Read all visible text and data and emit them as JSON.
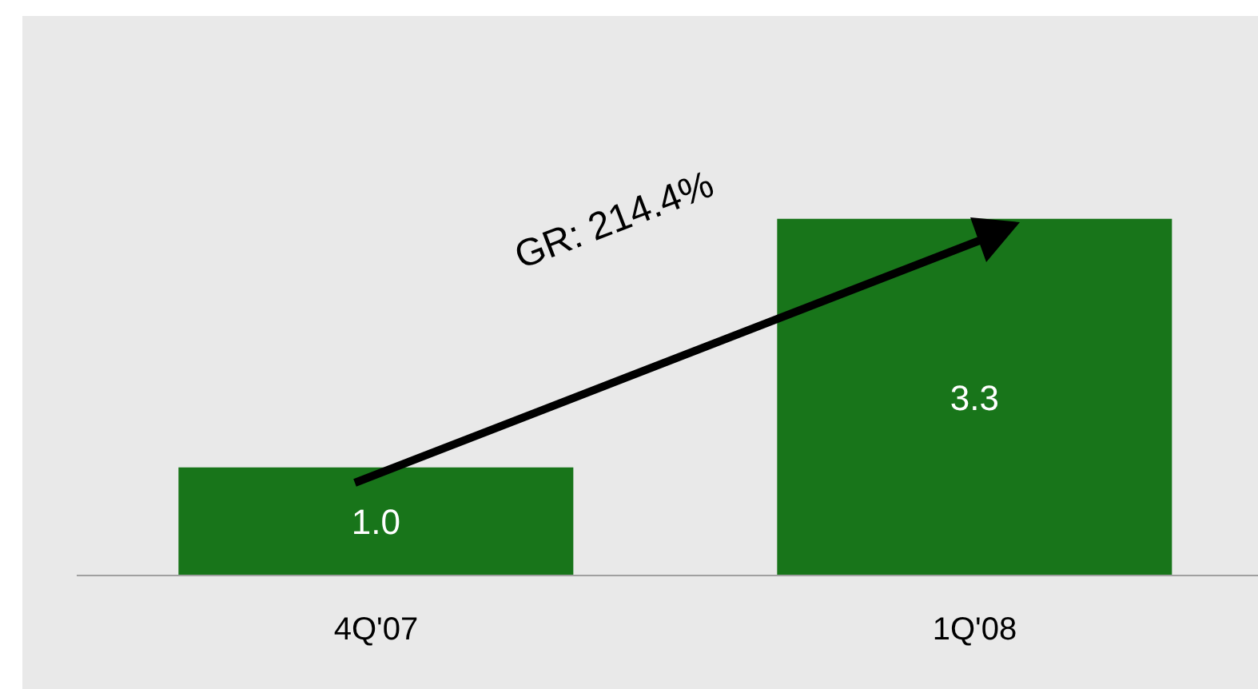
{
  "chart_data": {
    "type": "bar",
    "categories": [
      "4Q'07",
      "1Q'08"
    ],
    "values": [
      1.0,
      3.3
    ],
    "value_labels": [
      "1.0",
      "3.3"
    ],
    "color": "#18751a",
    "annotations": [
      "GR: 214.4%"
    ]
  }
}
